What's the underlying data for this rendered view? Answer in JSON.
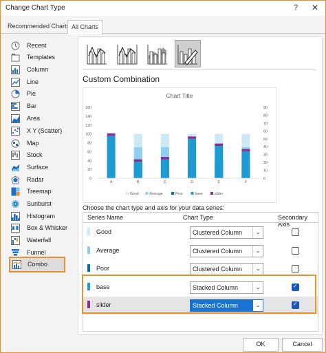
{
  "window": {
    "title": "Change Chart Type",
    "help": "?",
    "close": "✕"
  },
  "tabs": [
    "Recommended Charts",
    "All Charts"
  ],
  "sidebar": {
    "items": [
      {
        "label": "Recent",
        "icon": "clock-icon"
      },
      {
        "label": "Templates",
        "icon": "folder-icon"
      },
      {
        "label": "Column",
        "icon": "column-chart-icon"
      },
      {
        "label": "Line",
        "icon": "line-chart-icon"
      },
      {
        "label": "Pie",
        "icon": "pie-chart-icon"
      },
      {
        "label": "Bar",
        "icon": "bar-chart-icon"
      },
      {
        "label": "Area",
        "icon": "area-chart-icon"
      },
      {
        "label": "X Y (Scatter)",
        "icon": "scatter-chart-icon"
      },
      {
        "label": "Map",
        "icon": "map-chart-icon"
      },
      {
        "label": "Stock",
        "icon": "stock-chart-icon"
      },
      {
        "label": "Surface",
        "icon": "surface-chart-icon"
      },
      {
        "label": "Radar",
        "icon": "radar-chart-icon"
      },
      {
        "label": "Treemap",
        "icon": "treemap-chart-icon"
      },
      {
        "label": "Sunburst",
        "icon": "sunburst-chart-icon"
      },
      {
        "label": "Histogram",
        "icon": "histogram-chart-icon"
      },
      {
        "label": "Box & Whisker",
        "icon": "box-whisker-chart-icon"
      },
      {
        "label": "Waterfall",
        "icon": "waterfall-chart-icon"
      },
      {
        "label": "Funnel",
        "icon": "funnel-chart-icon"
      },
      {
        "label": "Combo",
        "icon": "combo-chart-icon"
      }
    ],
    "selected": "Combo"
  },
  "combo": {
    "subtypes": [
      "clustered-column-line-icon",
      "clustered-column-line-secondary-icon",
      "stacked-area-clustered-column-icon",
      "custom-combination-icon"
    ],
    "selected_subtype": 3,
    "heading": "Custom Combination"
  },
  "chart_data": {
    "type": "bar",
    "title": "Chart Title",
    "categories": [
      "A",
      "B",
      "C",
      "D",
      "E",
      "F"
    ],
    "y_ticks": [
      "0",
      "20",
      "40",
      "60",
      "80",
      "100",
      "120",
      "140",
      "160"
    ],
    "y2_ticks": [
      "0",
      "10",
      "20",
      "30",
      "40",
      "50",
      "60",
      "70",
      "80",
      "90"
    ],
    "ylim": [
      0,
      160
    ],
    "y2lim": [
      0,
      90
    ],
    "series": [
      {
        "name": "Good",
        "axis": "primary",
        "stack": "primary",
        "values": [
          100,
          100,
          100,
          100,
          100,
          100
        ],
        "color": "#cde9f6"
      },
      {
        "name": "Average",
        "axis": "primary",
        "stack": "primary",
        "values": [
          70,
          70,
          70,
          70,
          70,
          70
        ],
        "color": "#8fd0ee"
      },
      {
        "name": "Poor",
        "axis": "primary",
        "stack": "primary",
        "values": [
          40,
          40,
          40,
          40,
          40,
          40
        ],
        "color": "#0d6e9e"
      },
      {
        "name": "base",
        "axis": "secondary",
        "stack": "secondary",
        "values": [
          54,
          21,
          24,
          50,
          41,
          34
        ],
        "color": "#1f9bd4"
      },
      {
        "name": "slider",
        "axis": "secondary",
        "stack": "secondary",
        "values": [
          3,
          3,
          3,
          3,
          3,
          3
        ],
        "color": "#8a2f8f"
      }
    ],
    "legend": "bottom",
    "grid": false
  },
  "series_table": {
    "caption": "Choose the chart type and axis for your data series:",
    "headers": [
      "Series Name",
      "Chart Type",
      "Secondary Axis"
    ],
    "rows": [
      {
        "name": "Good",
        "type": "Clustered Column",
        "secondary": false,
        "color": "#cde9f6"
      },
      {
        "name": "Average",
        "type": "Clustered Column",
        "secondary": false,
        "color": "#8fd0ee"
      },
      {
        "name": "Poor",
        "type": "Clustered Column",
        "secondary": false,
        "color": "#0d6e9e"
      },
      {
        "name": "base",
        "type": "Stacked Column",
        "secondary": true,
        "color": "#1f9bd4"
      },
      {
        "name": "slider",
        "type": "Stacked Column",
        "secondary": true,
        "color": "#8a2f8f"
      }
    ]
  },
  "buttons": {
    "ok": "OK",
    "cancel": "Cancel"
  },
  "colors": {
    "accent_outline": "#e8922e",
    "selection_blue": "#1a73d0",
    "checkbox_blue": "#1a56b8"
  }
}
